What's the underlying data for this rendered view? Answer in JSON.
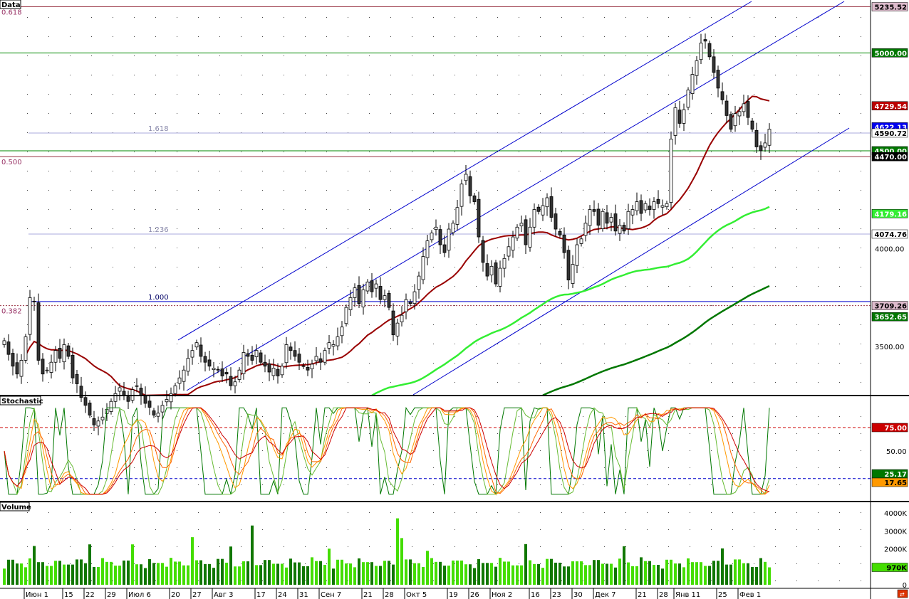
{
  "panes": {
    "price": "Data",
    "stoch": "Stochastic",
    "volume": "Volume"
  },
  "colors": {
    "grid": "#000000",
    "channel": "#0000cc",
    "ma_short": "#990000",
    "ma_mid": "#33ee33",
    "ma_long": "#007700",
    "stoch_fast": "#007700",
    "stoch_d": "#cc0000",
    "stoch_mid": "#ff6600",
    "stoch_slow": "#ff9900",
    "volume_up": "#44dd00",
    "volume_down": "#117700",
    "level_green": "#008800",
    "fib_line": "#aaaadd",
    "fib_text": "#993366"
  },
  "right_axis": {
    "price_ticks": [
      "4000.00",
      "3500.00"
    ],
    "price_flags": [
      {
        "text": "5235.52",
        "bg": "#ddbbcc",
        "fg": "#000"
      },
      {
        "text": "5000.00",
        "bg": "#007700",
        "fg": "#fff"
      },
      {
        "text": "4729.54",
        "bg": "#bb0000",
        "fg": "#fff"
      },
      {
        "text": "4622.13",
        "bg": "#0000ee",
        "fg": "#fff"
      },
      {
        "text": "4590.72",
        "bg": "#ffffff",
        "fg": "#000"
      },
      {
        "text": "4500.00",
        "bg": "#007700",
        "fg": "#fff"
      },
      {
        "text": "4470.00",
        "bg": "#000000",
        "fg": "#fff"
      },
      {
        "text": "4179.16",
        "bg": "#33ee33",
        "fg": "#fff"
      },
      {
        "text": "4074.76",
        "bg": "#ffffff",
        "fg": "#000"
      },
      {
        "text": "3709.26",
        "bg": "#ddbbcc",
        "fg": "#000"
      },
      {
        "text": "3652.65",
        "bg": "#007700",
        "fg": "#fff"
      }
    ],
    "stoch_ticks": [
      "50.00"
    ],
    "stoch_flags": [
      {
        "text": "75.00",
        "bg": "#cc0000",
        "fg": "#fff"
      },
      {
        "text": "25.17",
        "bg": "#007700",
        "fg": "#fff"
      },
      {
        "text": "17.65",
        "bg": "#ff9900",
        "fg": "#000"
      }
    ],
    "volume_ticks": [
      "4000K",
      "3000K",
      "2000K",
      "0"
    ],
    "volume_flag": {
      "text": "970K",
      "bg": "#44dd00",
      "fg": "#000"
    }
  },
  "fib_labels": [
    {
      "text": "0.618",
      "price": 5235.52
    },
    {
      "text": "0.500",
      "price": 4470
    },
    {
      "text": "0.382",
      "price": 3709.26
    }
  ],
  "fib_ext_labels": [
    {
      "text": "1.618",
      "price": 4590.72
    },
    {
      "text": "1.236",
      "price": 4074.76
    },
    {
      "text": "1.000",
      "price": 3730
    }
  ],
  "x_labels": [
    "Июн 1",
    "15",
    "22",
    "29",
    "Июл 6",
    "20",
    "27",
    "Авг 3",
    "17",
    "24",
    "31",
    "Сен 7",
    "21",
    "28",
    "Окт 5",
    "19",
    "26",
    "Ноя 2",
    "16",
    "23",
    "30",
    "Дек 7",
    "21",
    "28",
    "Янв 11",
    "25",
    "Фев 1"
  ],
  "chart_data": {
    "type": "candlestick",
    "price_range": [
      3250,
      5270
    ],
    "horizontal_levels": [
      5235.52,
      5000,
      4590.72,
      4500,
      4470,
      4074.76,
      3730,
      3709.26
    ],
    "candles_close": [
      3530,
      3460,
      3400,
      3360,
      3430,
      3550,
      3750,
      3730,
      3430,
      3360,
      3380,
      3420,
      3480,
      3440,
      3510,
      3450,
      3340,
      3310,
      3240,
      3200,
      3150,
      3100,
      3120,
      3140,
      3180,
      3220,
      3260,
      3290,
      3250,
      3220,
      3280,
      3300,
      3250,
      3210,
      3190,
      3150,
      3160,
      3200,
      3230,
      3260,
      3300,
      3340,
      3380,
      3440,
      3480,
      3520,
      3450,
      3420,
      3400,
      3390,
      3380,
      3350,
      3360,
      3300,
      3320,
      3380,
      3470,
      3450,
      3430,
      3480,
      3420,
      3400,
      3370,
      3390,
      3350,
      3400,
      3510,
      3480,
      3450,
      3420,
      3400,
      3380,
      3410,
      3450,
      3420,
      3480,
      3520,
      3510,
      3550,
      3600,
      3700,
      3750,
      3800,
      3720,
      3790,
      3830,
      3780,
      3820,
      3740,
      3760,
      3700,
      3560,
      3620,
      3660,
      3740,
      3720,
      3780,
      3860,
      3960,
      4040,
      4080,
      4110,
      4020,
      3980,
      4100,
      4130,
      4210,
      4330,
      4380,
      4270,
      4240,
      4060,
      3930,
      3860,
      3910,
      3820,
      3900,
      3950,
      4010,
      4060,
      4110,
      4130,
      4020,
      4110,
      4200,
      4190,
      4220,
      4260,
      4160,
      4100,
      4070,
      3980,
      3840,
      3920,
      4020,
      4050,
      4130,
      4200,
      4190,
      4120,
      4190,
      4130,
      4160,
      4090,
      4120,
      4090,
      4190,
      4200,
      4240,
      4180,
      4230,
      4200,
      4240,
      4230,
      4220,
      4230,
      4560,
      4720,
      4640,
      4710,
      4810,
      4890,
      4960,
      5050,
      5060,
      4980,
      4900,
      4820,
      4760,
      4680,
      4610,
      4690,
      4700,
      4740,
      4670,
      4610,
      4520,
      4500,
      4540,
      4610
    ],
    "moving_averages": {
      "ma_short": {
        "start": 3400,
        "end": 4729.54
      },
      "ma_mid": {
        "start": 3150,
        "end": 4179.16
      },
      "ma_long": {
        "start": 3100,
        "end": 3652.65
      }
    },
    "stochastic": {
      "overbought": 75,
      "oversold": 17.65,
      "last_fast": 25.17,
      "last_slow": 17.65
    },
    "volume": {
      "last": 970,
      "unit": "K",
      "range": [
        0,
        4200
      ],
      "peak": 3700
    }
  }
}
